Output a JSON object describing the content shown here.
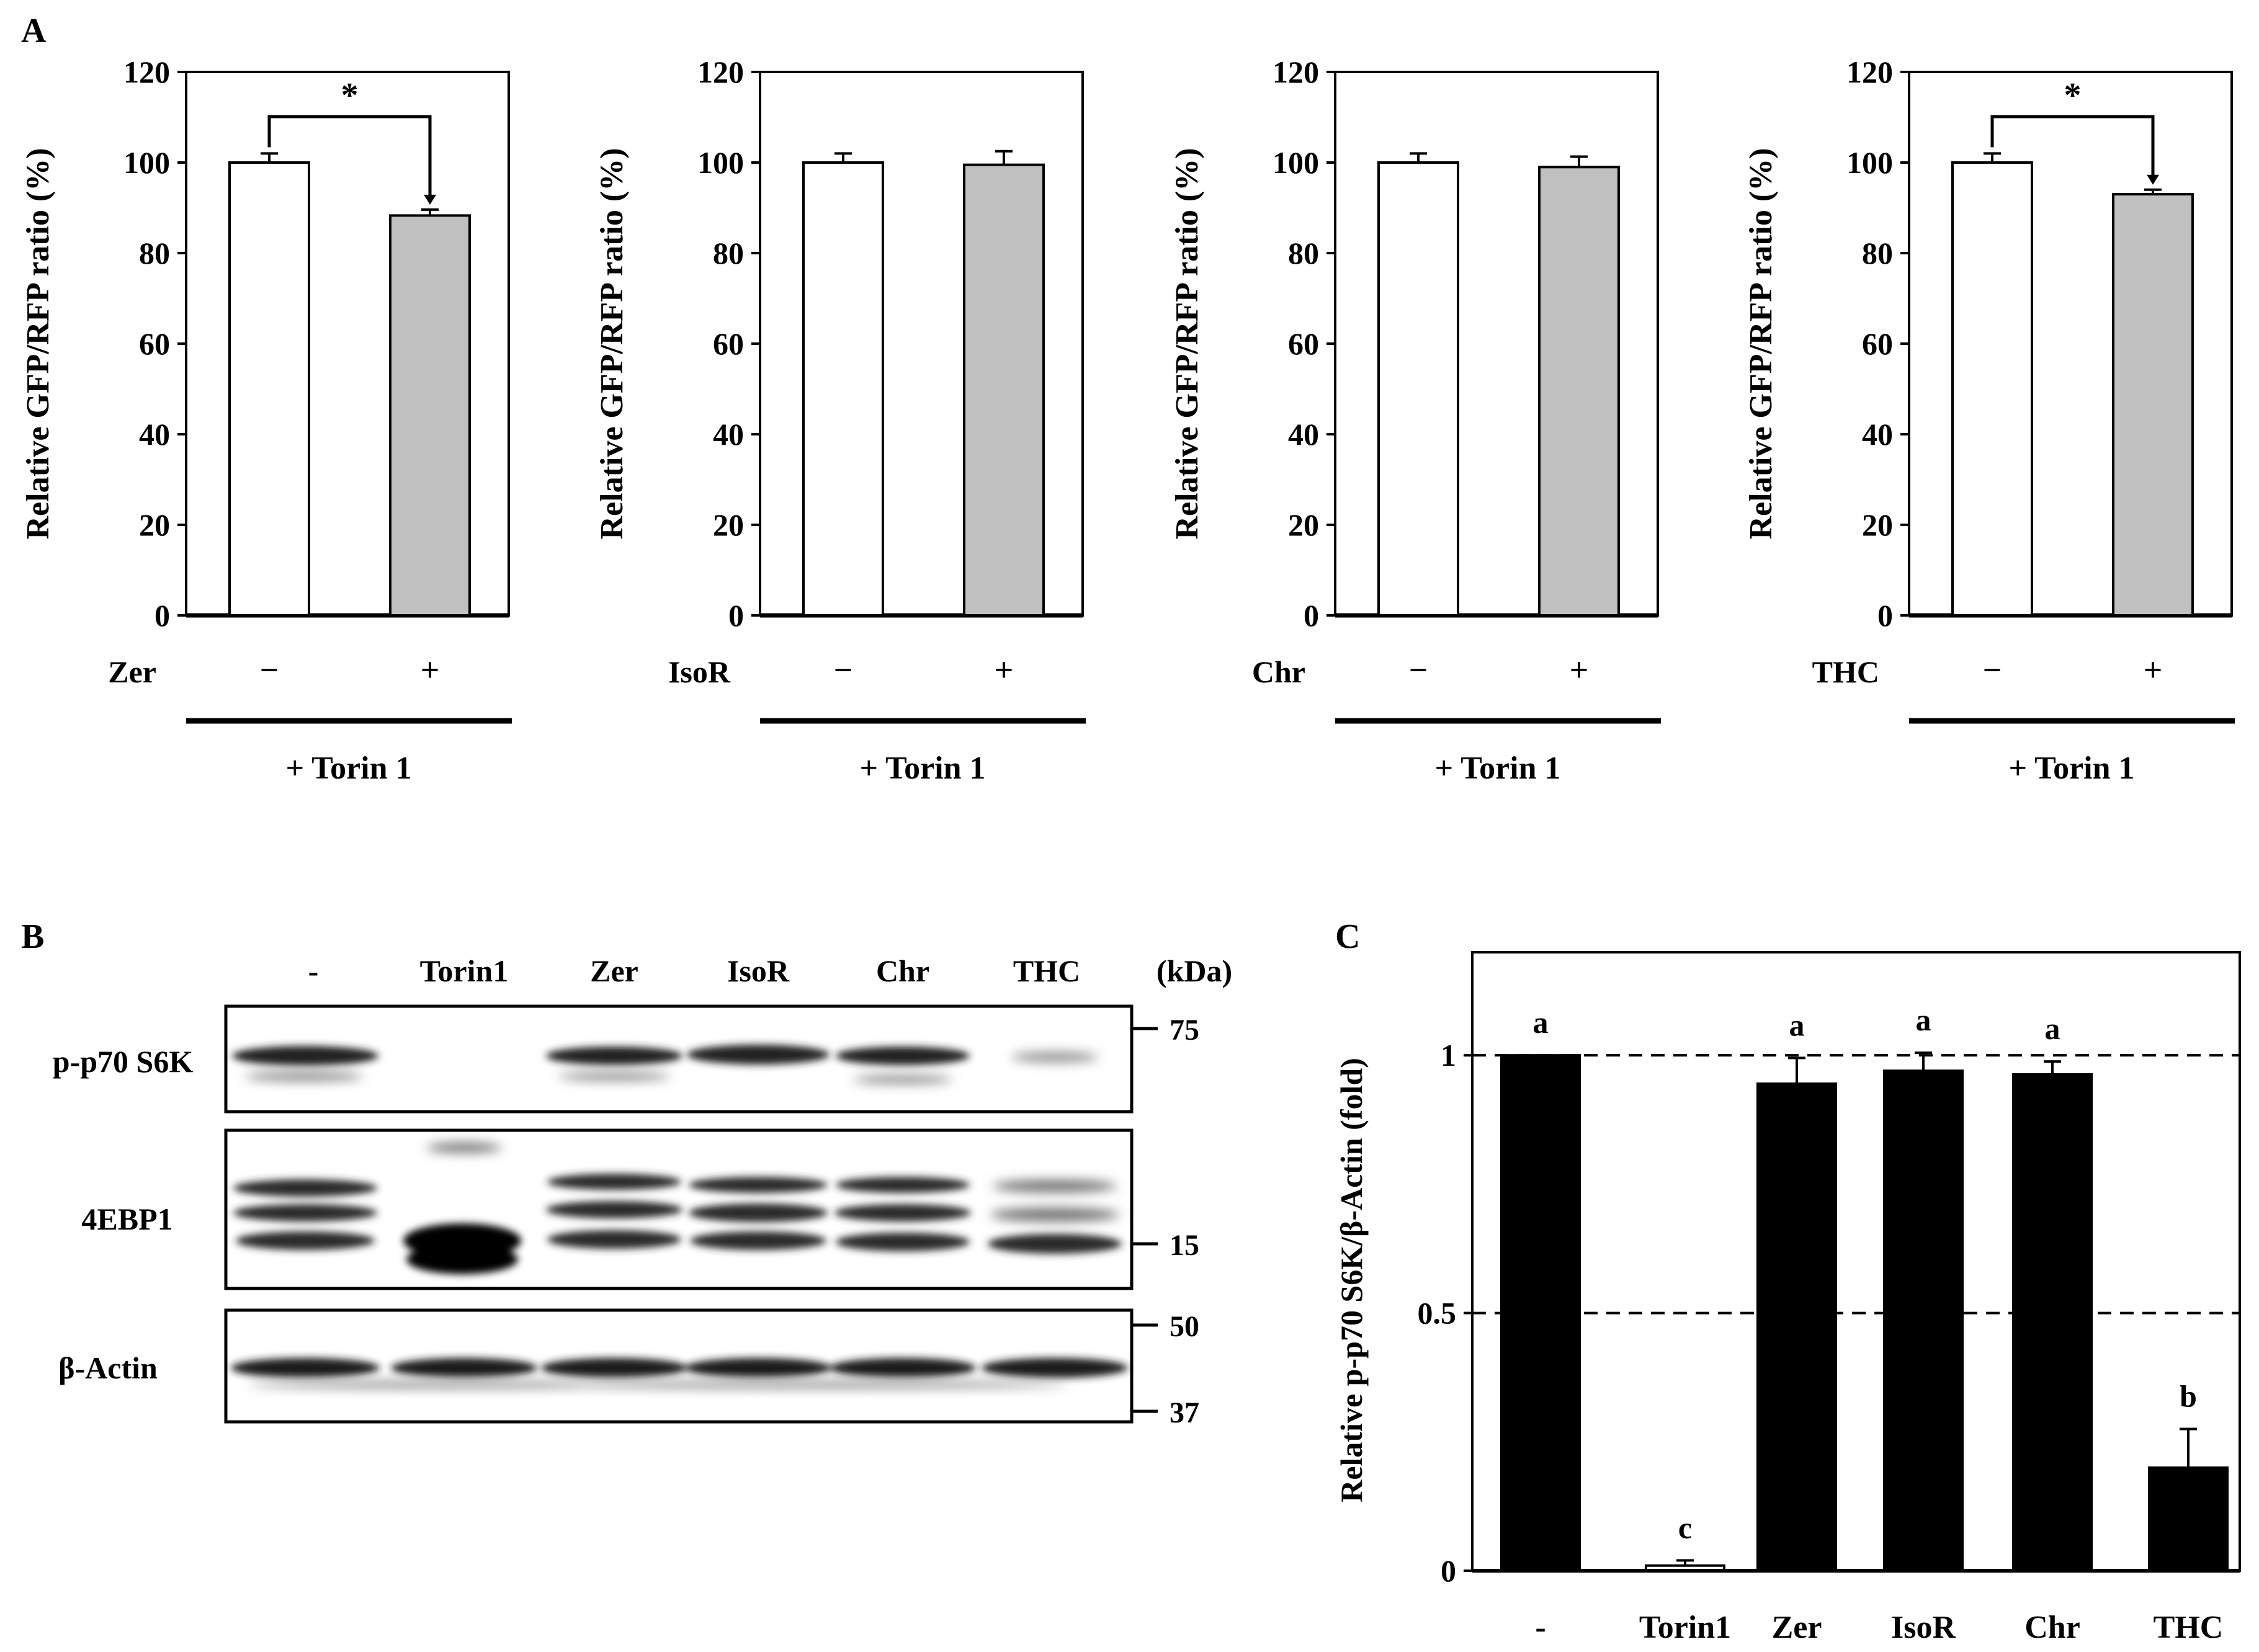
{
  "panel_letters": {
    "a": "A",
    "b": "B",
    "c": "C"
  },
  "panel_a": {
    "ylabel": "Relative GFP/RFP ratio (%)",
    "yticks": [
      "0",
      "20",
      "40",
      "60",
      "80",
      "100",
      "120"
    ],
    "minus_symbol": "−",
    "plus_symbol": "+",
    "bracket_label": "+ Torin 1",
    "charts": [
      {
        "treatment": "Zer",
        "significance": "*"
      },
      {
        "treatment": "IsoR",
        "significance": ""
      },
      {
        "treatment": "Chr",
        "significance": ""
      },
      {
        "treatment": "THC",
        "significance": "*"
      }
    ]
  },
  "panel_b": {
    "lanes": [
      "-",
      "Torin1",
      "Zer",
      "IsoR",
      "Chr",
      "THC"
    ],
    "kda_label": "(kDa)",
    "blots": [
      {
        "name": "p-p70 S6K",
        "markers": [
          "75"
        ]
      },
      {
        "name": "4EBP1",
        "markers": [
          "15"
        ]
      },
      {
        "name": "β-Actin",
        "markers": [
          "50",
          "37"
        ]
      }
    ]
  },
  "panel_c": {
    "ylabel": "Relative p-p70 S6K/β-Actin (fold)",
    "yticks": [
      "0",
      "0.5",
      "1"
    ]
  },
  "chart_data": [
    {
      "type": "bar",
      "categories": [
        "−",
        "+"
      ],
      "values": [
        100,
        88.3
      ],
      "errors": [
        2.0,
        1.3
      ],
      "bar_colors": [
        "#ffffff",
        "#c0c0c0"
      ],
      "xlabel": "Zer",
      "ylabel": "Relative GFP/RFP ratio (%)",
      "ylim": [
        0,
        120
      ],
      "significance": "*"
    },
    {
      "type": "bar",
      "categories": [
        "−",
        "+"
      ],
      "values": [
        100,
        99.5
      ],
      "errors": [
        2.0,
        3.0
      ],
      "bar_colors": [
        "#ffffff",
        "#c0c0c0"
      ],
      "xlabel": "IsoR",
      "ylabel": "Relative GFP/RFP ratio (%)",
      "ylim": [
        0,
        120
      ]
    },
    {
      "type": "bar",
      "categories": [
        "−",
        "+"
      ],
      "values": [
        100,
        99.0
      ],
      "errors": [
        2.0,
        2.3
      ],
      "bar_colors": [
        "#ffffff",
        "#c0c0c0"
      ],
      "xlabel": "Chr",
      "ylabel": "Relative GFP/RFP ratio (%)",
      "ylim": [
        0,
        120
      ]
    },
    {
      "type": "bar",
      "categories": [
        "−",
        "+"
      ],
      "values": [
        100,
        93.0
      ],
      "errors": [
        2.0,
        1.0
      ],
      "bar_colors": [
        "#ffffff",
        "#c0c0c0"
      ],
      "xlabel": "THC",
      "ylabel": "Relative GFP/RFP ratio (%)",
      "ylim": [
        0,
        120
      ],
      "significance": "*"
    },
    {
      "type": "bar",
      "categories": [
        "-",
        "Torin1",
        "Zer",
        "IsoR",
        "Chr",
        "THC"
      ],
      "values": [
        1.0,
        0.01,
        0.945,
        0.97,
        0.963,
        0.2
      ],
      "errors": [
        0,
        0.01,
        0.05,
        0.035,
        0.025,
        0.075
      ],
      "letters": [
        "a",
        "c",
        "a",
        "a",
        "a",
        "b"
      ],
      "bar_colors": [
        "#000000",
        "#ffffff",
        "#000000",
        "#000000",
        "#000000",
        "#000000"
      ],
      "reference_lines": [
        0.5,
        1.0
      ],
      "ylabel": "Relative p-p70 S6K/β-Actin (fold)",
      "ylim": [
        0,
        1.2
      ]
    }
  ]
}
